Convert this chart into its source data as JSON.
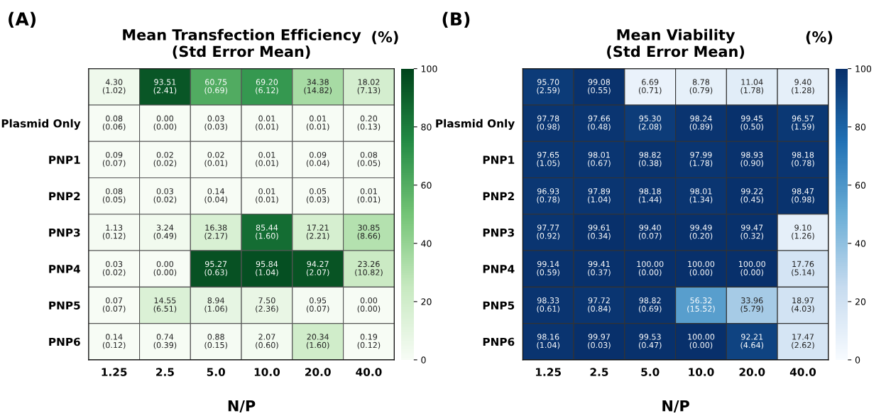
{
  "chart_data": [
    {
      "type": "heatmap",
      "title": "Mean Transfection Efficiency\n(Std Error Mean)",
      "clabel": "(%)",
      "xlabel": "N/P",
      "annotations": [
        "(A)"
      ],
      "categories": [
        "1.25",
        "2.5",
        "5.0",
        "10.0",
        "20.0",
        "40.0"
      ],
      "y_categories": [
        null,
        "Plasmid Only",
        "PNP1",
        "PNP2",
        "PNP3",
        "PNP4",
        "PNP5",
        "PNP6"
      ],
      "colors": [
        "#f7fcf5",
        "#c7e9c0",
        "#74c476",
        "#238b45",
        "#00441b"
      ],
      "clim": [
        0,
        100
      ],
      "cticks": [
        0,
        20,
        40,
        60,
        80,
        100
      ],
      "cells": [
        [
          4.3,
          93.51,
          60.75,
          69.2,
          34.38,
          18.02
        ],
        [
          0.08,
          0.0,
          0.03,
          0.01,
          0.01,
          0.2
        ],
        [
          0.09,
          0.02,
          0.02,
          0.01,
          0.09,
          0.08
        ],
        [
          0.08,
          0.03,
          0.14,
          0.01,
          0.05,
          0.01
        ],
        [
          1.13,
          3.24,
          16.38,
          85.44,
          17.21,
          30.85
        ],
        [
          0.03,
          0.0,
          95.27,
          95.84,
          94.27,
          23.26
        ],
        [
          0.07,
          14.55,
          8.94,
          7.5,
          0.95,
          0.0
        ],
        [
          0.14,
          0.74,
          0.88,
          2.07,
          20.34,
          0.19
        ]
      ],
      "cell_labels": [
        [
          "4.30\n(1.02)",
          "93.51\n(2.41)",
          "60.75\n(0.69)",
          "69.20\n(6.12)",
          "34.38\n(14.82)",
          "18.02\n(7.13)"
        ],
        [
          "0.08\n(0.06)",
          "0.00\n(0.00)",
          "0.03\n(0.03)",
          "0.01\n(0.01)",
          "0.01\n(0.01)",
          "0.20\n(0.13)"
        ],
        [
          "0.09\n(0.07)",
          "0.02\n(0.02)",
          "0.02\n(0.01)",
          "0.01\n(0.01)",
          "0.09\n(0.04)",
          "0.08\n(0.05)"
        ],
        [
          "0.08\n(0.05)",
          "0.03\n(0.02)",
          "0.14\n(0.04)",
          "0.01\n(0.01)",
          "0.05\n(0.03)",
          "0.01\n(0.01)"
        ],
        [
          "1.13\n(0.12)",
          "3.24\n(0.49)",
          "16.38\n(2.17)",
          "85.44\n(1.60)",
          "17.21\n(2.21)",
          "30.85\n(8.66)"
        ],
        [
          "0.03\n(0.02)",
          "0.00\n(0.00)",
          "95.27\n(0.63)",
          "95.84\n(1.04)",
          "94.27\n(2.07)",
          "23.26\n(10.82)"
        ],
        [
          "0.07\n(0.07)",
          "14.55\n(6.51)",
          "8.94\n(1.06)",
          "7.50\n(2.36)",
          "0.95\n(0.07)",
          "0.00\n(0.00)"
        ],
        [
          "0.14\n(0.12)",
          "0.74\n(0.39)",
          "0.88\n(0.15)",
          "2.07\n(0.60)",
          "20.34\n(1.60)",
          "0.19\n(0.12)"
        ]
      ]
    },
    {
      "type": "heatmap",
      "title": "Mean Viability\n(Std Error Mean)",
      "clabel": "(%)",
      "xlabel": "N/P",
      "annotations": [
        "(B)"
      ],
      "categories": [
        "1.25",
        "2.5",
        "5.0",
        "10.0",
        "20.0",
        "40.0"
      ],
      "y_categories": [
        null,
        "Plasmid Only",
        "PNP1",
        "PNP2",
        "PNP3",
        "PNP4",
        "PNP5",
        "PNP6"
      ],
      "colors": [
        "#f7fbff",
        "#c6dbef",
        "#6baed6",
        "#2171b5",
        "#08306b"
      ],
      "clim": [
        0,
        100
      ],
      "cticks": [
        0,
        20,
        40,
        60,
        80,
        100
      ],
      "cells": [
        [
          95.7,
          99.08,
          6.69,
          8.78,
          11.04,
          9.4
        ],
        [
          97.78,
          97.66,
          95.3,
          98.24,
          99.45,
          96.57
        ],
        [
          97.65,
          98.01,
          98.82,
          97.99,
          98.93,
          98.18
        ],
        [
          96.93,
          97.89,
          98.18,
          98.01,
          99.22,
          98.47
        ],
        [
          97.77,
          99.61,
          99.4,
          99.49,
          99.47,
          9.1
        ],
        [
          99.14,
          99.41,
          100.0,
          100.0,
          100.0,
          17.76
        ],
        [
          98.33,
          97.72,
          98.82,
          56.32,
          33.96,
          18.97
        ],
        [
          98.16,
          99.97,
          99.53,
          100.0,
          92.21,
          17.47
        ]
      ],
      "cell_labels": [
        [
          "95.70\n(2.59)",
          "99.08\n(0.55)",
          "6.69\n(0.71)",
          "8.78\n(0.79)",
          "11.04\n(1.78)",
          "9.40\n(1.28)"
        ],
        [
          "97.78\n(0.98)",
          "97.66\n(0.48)",
          "95.30\n(2.08)",
          "98.24\n(0.89)",
          "99.45\n(0.50)",
          "96.57\n(1.59)"
        ],
        [
          "97.65\n(1.05)",
          "98.01\n(0.67)",
          "98.82\n(0.38)",
          "97.99\n(1.78)",
          "98.93\n(0.90)",
          "98.18\n(0.78)"
        ],
        [
          "96.93\n(0.78)",
          "97.89\n(1.04)",
          "98.18\n(1.44)",
          "98.01\n(1.34)",
          "99.22\n(0.45)",
          "98.47\n(0.98)"
        ],
        [
          "97.77\n(0.92)",
          "99.61\n(0.34)",
          "99.40\n(0.07)",
          "99.49\n(0.20)",
          "99.47\n(0.32)",
          "9.10\n(1.26)"
        ],
        [
          "99.14\n(0.59)",
          "99.41\n(0.37)",
          "100.00\n(0.00)",
          "100.00\n(0.00)",
          "100.00\n(0.00)",
          "17.76\n(5.14)"
        ],
        [
          "98.33\n(0.61)",
          "97.72\n(0.84)",
          "98.82\n(0.69)",
          "56.32\n(15.52)",
          "33.96\n(5.79)",
          "18.97\n(4.03)"
        ],
        [
          "98.16\n(1.04)",
          "99.97\n(0.03)",
          "99.53\n(0.47)",
          "100.00\n(0.00)",
          "92.21\n(4.64)",
          "17.47\n(2.62)"
        ]
      ]
    }
  ]
}
